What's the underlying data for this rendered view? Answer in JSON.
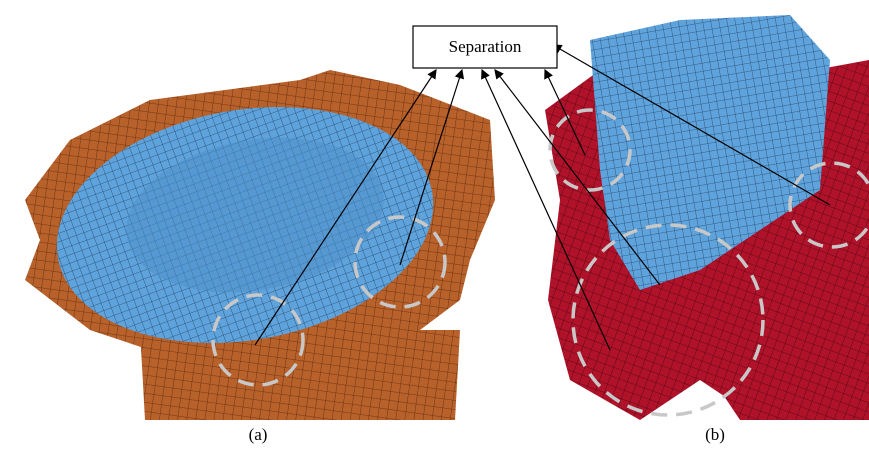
{
  "figure": {
    "annotation": "Separation",
    "panels": [
      {
        "label": "(a)"
      },
      {
        "label": "(b)"
      }
    ]
  }
}
